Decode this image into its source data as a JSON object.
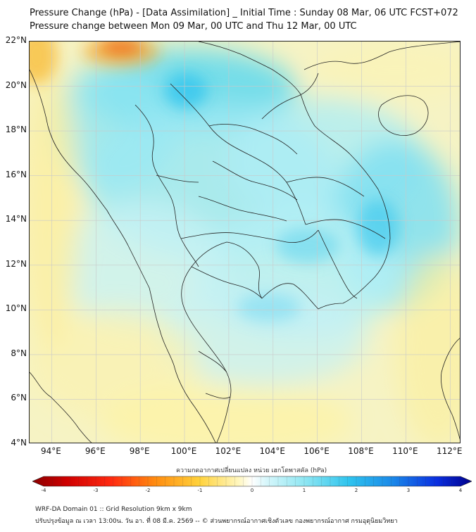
{
  "title_line1": "Pressure Change (hPa) - [Data Assimilation] _ Initial Time : Sunday 08 Mar, 06 UTC FCST+072",
  "title_line2": "Pressure change between Mon 09 Mar, 00 UTC and Thu 12 Mar, 00 UTC",
  "map": {
    "lon_range": [
      93,
      112.5
    ],
    "lat_range": [
      4,
      22
    ],
    "lat_ticks": [
      "22°N",
      "20°N",
      "18°N",
      "16°N",
      "14°N",
      "12°N",
      "10°N",
      "8°N",
      "6°N",
      "4°N"
    ],
    "lon_ticks": [
      "94°E",
      "96°E",
      "98°E",
      "100°E",
      "102°E",
      "104°E",
      "106°E",
      "108°E",
      "110°E",
      "112°E"
    ],
    "grid": true
  },
  "colorbar": {
    "title": "ความกดอากาศเปลี่ยนแปลง หน่วย เฮกโตพาสคัล (hPa)",
    "range": [
      -4,
      4
    ],
    "tick_labels": [
      "-4",
      "-3",
      "-2",
      "-1",
      "0",
      "1",
      "2",
      "3",
      "4"
    ],
    "negative_color": "#8b0000",
    "positive_color": "#00008b"
  },
  "footer": {
    "line1": "WRF-DA Domain 01 :: Grid Resolution 9km x 9km",
    "line2": "ปรับปรุงข้อมูล ณ เวลา 13:00น. วัน อา. ที่ 08 มี.ค. 2569 -- © ส่วนพยากรณ์อากาศเชิงตัวเลข กองพยากรณ์อากาศ กรมอุตุนิยมวิทยา"
  }
}
